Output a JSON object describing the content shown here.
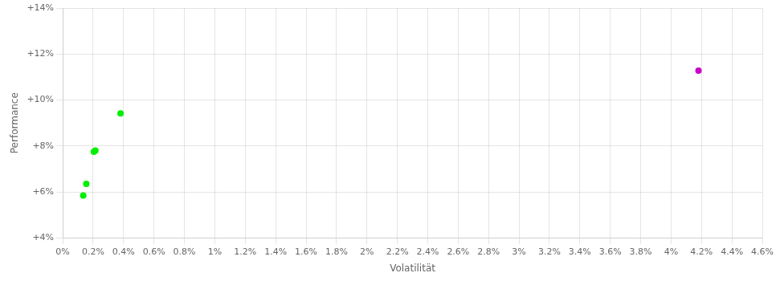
{
  "chart_data": {
    "type": "scatter",
    "xlabel": "Volatilität",
    "ylabel": "Performance",
    "xlim": [
      0,
      0.046
    ],
    "ylim": [
      0.04,
      0.14
    ],
    "xticks": [
      {
        "value": 0,
        "label": "0%"
      },
      {
        "value": 0.002,
        "label": "0.2%"
      },
      {
        "value": 0.004,
        "label": "0.4%"
      },
      {
        "value": 0.006,
        "label": "0.6%"
      },
      {
        "value": 0.008,
        "label": "0.8%"
      },
      {
        "value": 0.01,
        "label": "1%"
      },
      {
        "value": 0.012,
        "label": "1.2%"
      },
      {
        "value": 0.014,
        "label": "1.4%"
      },
      {
        "value": 0.016,
        "label": "1.6%"
      },
      {
        "value": 0.018,
        "label": "1.8%"
      },
      {
        "value": 0.02,
        "label": "2%"
      },
      {
        "value": 0.022,
        "label": "2.2%"
      },
      {
        "value": 0.024,
        "label": "2.4%"
      },
      {
        "value": 0.026,
        "label": "2.6%"
      },
      {
        "value": 0.028,
        "label": "2.8%"
      },
      {
        "value": 0.03,
        "label": "3%"
      },
      {
        "value": 0.032,
        "label": "3.2%"
      },
      {
        "value": 0.034,
        "label": "3.4%"
      },
      {
        "value": 0.036,
        "label": "3.6%"
      },
      {
        "value": 0.038,
        "label": "3.8%"
      },
      {
        "value": 0.04,
        "label": "4%"
      },
      {
        "value": 0.042,
        "label": "4.2%"
      },
      {
        "value": 0.044,
        "label": "4.4%"
      },
      {
        "value": 0.046,
        "label": "4.6%"
      }
    ],
    "yticks": [
      {
        "value": 0.04,
        "label": "+4%"
      },
      {
        "value": 0.06,
        "label": "+6%"
      },
      {
        "value": 0.08,
        "label": "+8%"
      },
      {
        "value": 0.1,
        "label": "+10%"
      },
      {
        "value": 0.12,
        "label": "+12%"
      },
      {
        "value": 0.14,
        "label": "+14%"
      }
    ],
    "grid": true,
    "series": [
      {
        "color": "#00ee00",
        "x": [
          0.00135,
          0.00155,
          0.00205,
          0.00215,
          0.0038
        ],
        "values": [
          0.0585,
          0.0635,
          0.0775,
          0.078,
          0.0942
        ]
      },
      {
        "color": "#cc00cc",
        "x": [
          0.0418
        ],
        "values": [
          0.1128
        ]
      }
    ]
  }
}
